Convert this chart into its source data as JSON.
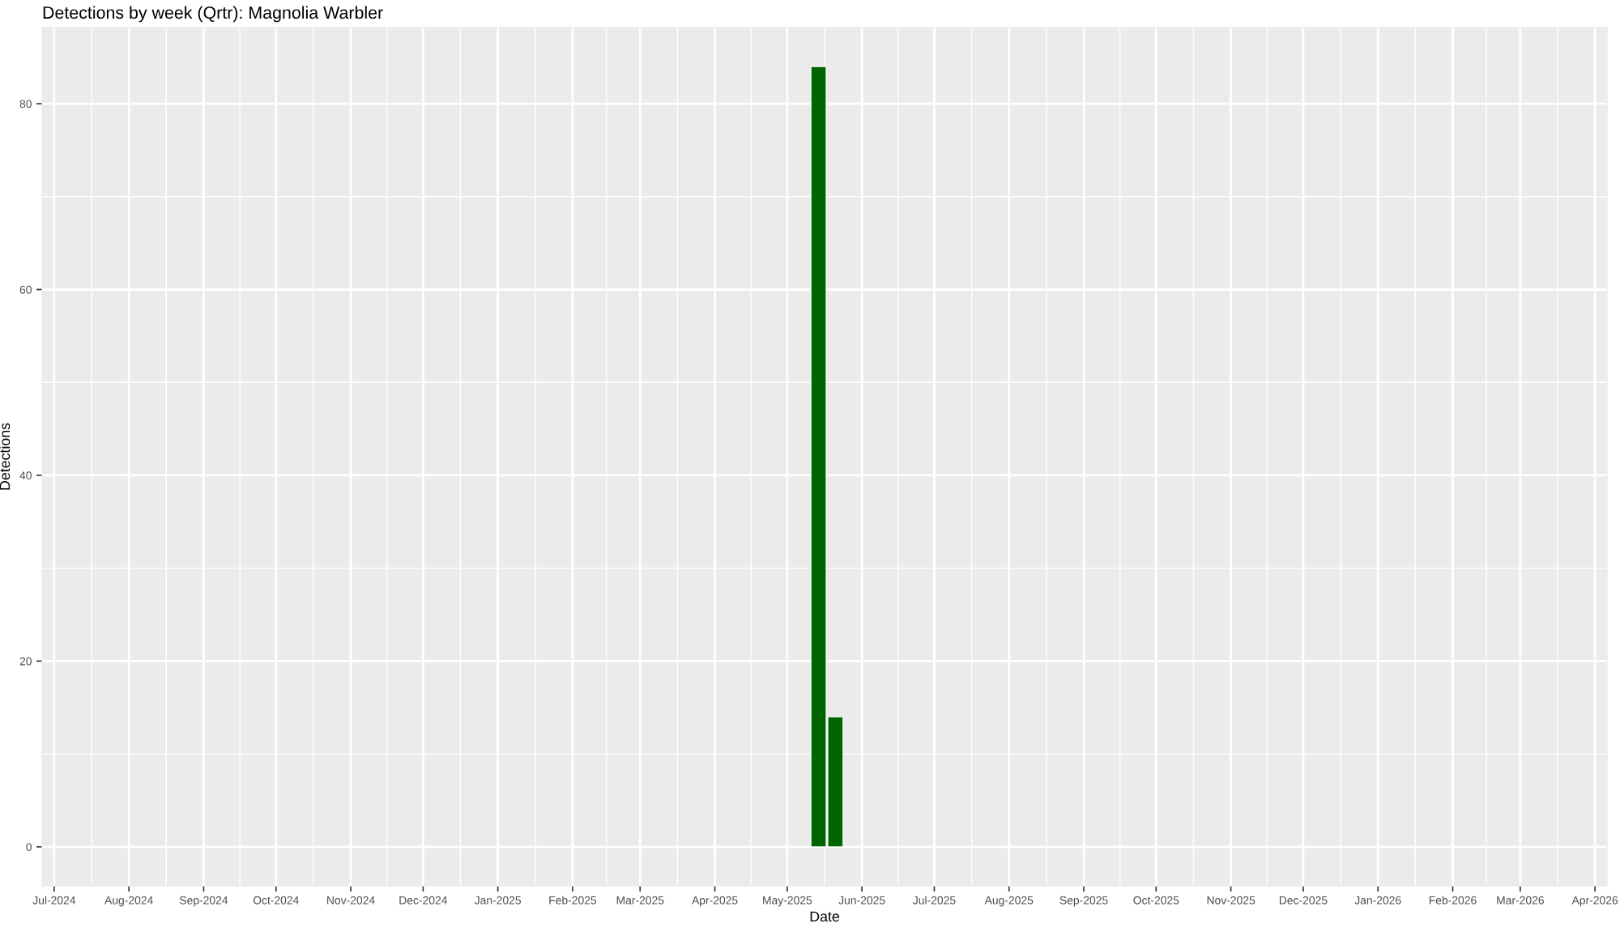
{
  "chart_data": {
    "type": "bar",
    "title": "Detections by week (Qrtr): Magnolia Warbler",
    "xlabel": "Date",
    "ylabel": "Detections",
    "x": [
      "2025-05-14",
      "2025-05-21"
    ],
    "values": [
      84,
      14
    ],
    "color": "#006400",
    "xlim": [
      "2024-06-26",
      "2026-04-06"
    ],
    "ylim": [
      -4.2,
      88.2
    ],
    "xticks": [
      {
        "value": "2024-07-01",
        "label": "Jul-2024"
      },
      {
        "value": "2024-08-01",
        "label": "Aug-2024"
      },
      {
        "value": "2024-09-01",
        "label": "Sep-2024"
      },
      {
        "value": "2024-10-01",
        "label": "Oct-2024"
      },
      {
        "value": "2024-11-01",
        "label": "Nov-2024"
      },
      {
        "value": "2024-12-01",
        "label": "Dec-2024"
      },
      {
        "value": "2025-01-01",
        "label": "Jan-2025"
      },
      {
        "value": "2025-02-01",
        "label": "Feb-2025"
      },
      {
        "value": "2025-03-01",
        "label": "Mar-2025"
      },
      {
        "value": "2025-04-01",
        "label": "Apr-2025"
      },
      {
        "value": "2025-05-01",
        "label": "May-2025"
      },
      {
        "value": "2025-06-01",
        "label": "Jun-2025"
      },
      {
        "value": "2025-07-01",
        "label": "Jul-2025"
      },
      {
        "value": "2025-08-01",
        "label": "Aug-2025"
      },
      {
        "value": "2025-09-01",
        "label": "Sep-2025"
      },
      {
        "value": "2025-10-01",
        "label": "Oct-2025"
      },
      {
        "value": "2025-11-01",
        "label": "Nov-2025"
      },
      {
        "value": "2025-12-01",
        "label": "Dec-2025"
      },
      {
        "value": "2026-01-01",
        "label": "Jan-2026"
      },
      {
        "value": "2026-02-01",
        "label": "Feb-2026"
      },
      {
        "value": "2026-03-01",
        "label": "Mar-2026"
      },
      {
        "value": "2026-04-01",
        "label": "Apr-2026"
      }
    ],
    "yticks": [
      0,
      20,
      40,
      60,
      80
    ],
    "grid": true
  }
}
